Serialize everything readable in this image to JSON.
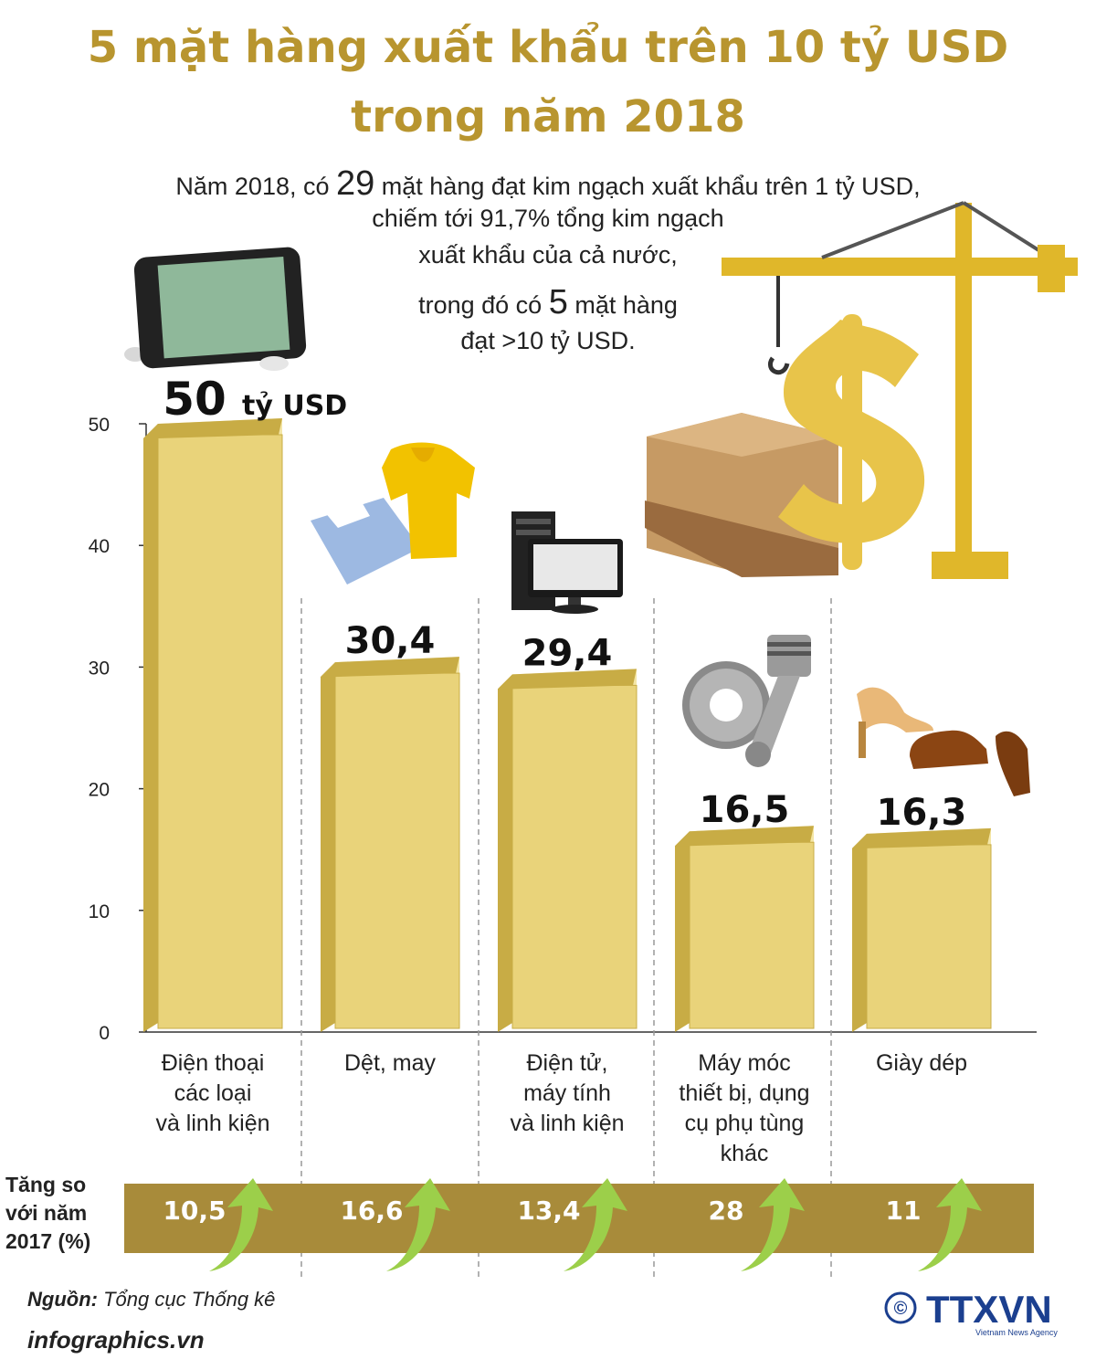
{
  "title_line1": "5 mặt hàng xuất khẩu trên 10 tỷ USD",
  "title_line2": "trong năm 2018",
  "intro": {
    "l1_pre": "Năm 2018, có ",
    "l1_num": "29",
    "l1_post": " mặt hàng đạt kim ngạch xuất khẩu trên 1 tỷ USD,",
    "l2": "chiếm tới 91,7% tổng kim ngạch",
    "l3": "xuất khẩu của cả nước,",
    "l4_pre": "trong đó có ",
    "l4_num": "5",
    "l4_post": " mặt hàng",
    "l5": "đạt >10 tỷ USD."
  },
  "chart_data": {
    "type": "bar",
    "categories": [
      [
        "Điện thoại",
        "các loại",
        "và linh kiện"
      ],
      [
        "Dệt, may"
      ],
      [
        "Điện tử,",
        "máy tính",
        "và linh kiện"
      ],
      [
        "Máy móc",
        "thiết bị, dụng",
        "cụ phụ tùng",
        "khác"
      ],
      [
        "Giày dép"
      ]
    ],
    "values": [
      50,
      30.4,
      29.4,
      16.5,
      16.3
    ],
    "value_labels": [
      "50",
      "30,4",
      "29,4",
      "16,5",
      "16,3"
    ],
    "first_value_unit": "tỷ USD",
    "yticks": [
      0,
      10,
      20,
      30,
      40,
      50
    ],
    "ylim": [
      0,
      50
    ],
    "growth_label": "Tăng so với năm 2017 (%)",
    "growth_values": [
      "10,5",
      "16,6",
      "13,4",
      "28",
      "11"
    ],
    "colors": {
      "bar_front": "#e9d37a",
      "bar_side": "#c8ac45",
      "bar_top": "#f4e6a6",
      "title": "#b8952f",
      "growth_band": "#a88b3a",
      "arrow": "#9ccf4a"
    }
  },
  "footer": {
    "source_label": "Nguồn:",
    "source_text": " Tổng cục Thống kê",
    "site": "infographics.vn",
    "logo_text": "TTXVN",
    "logo_sub": "Vietnam News Agency",
    "copyright": "©"
  },
  "icons": [
    "tablet-icon",
    "shirts-icon",
    "computer-icon",
    "gears-piston-icon",
    "shoes-icon",
    "crane-dollar-boxes-icon"
  ]
}
